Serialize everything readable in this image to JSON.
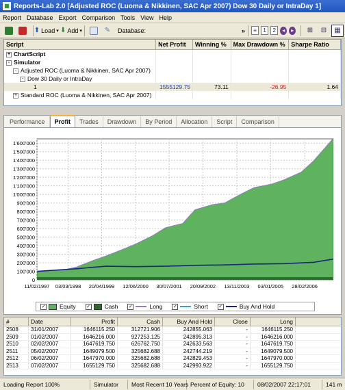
{
  "window": {
    "title": "Reports-Lab 2.0 [Adjusted ROC (Luoma & Nikkinen,  SAC Apr 2007)  Dow 30 Daily or IntraDay   1]"
  },
  "menu": [
    "Report",
    "Database",
    "Export",
    "Comparison",
    "Tools",
    "View",
    "Help"
  ],
  "toolbar": {
    "load_label": "Load",
    "add_label": "Add",
    "database_label": "Database:",
    "more_label": "»",
    "page1": "1",
    "page2": "2"
  },
  "grid": {
    "headers": [
      "Script",
      "Net Profit",
      "Winning %",
      "Max Drawdown %",
      "Sharpe Ratio"
    ],
    "rows": [
      {
        "indent": 0,
        "expander": "+",
        "label": "ChartScript",
        "bold": true
      },
      {
        "indent": 0,
        "expander": "-",
        "label": "Simulator",
        "bold": true
      },
      {
        "indent": 1,
        "expander": "-",
        "label": "Adjusted ROC (Luoma & Nikkinen,  SAC Apr 2007)"
      },
      {
        "indent": 2,
        "expander": "-",
        "label": "Dow 30 Daily or IntraDay"
      },
      {
        "indent": 4,
        "expander": "",
        "label": "1",
        "net_profit": "1555129.75",
        "winning": "73.11",
        "drawdown": "-26.95",
        "sharpe": "1.64",
        "selected": true
      },
      {
        "indent": 1,
        "expander": "+",
        "label": "Standard ROC (Luoma & Nikkinen,  SAC Apr 2007)"
      }
    ]
  },
  "tabs": [
    "Performance",
    "Profit",
    "Trades",
    "Drawdown",
    "By Period",
    "Allocation",
    "Script",
    "Comparison"
  ],
  "active_tab": "Profit",
  "legend": [
    {
      "label": "Equity",
      "color": "#5fb35f",
      "kind": "fill"
    },
    {
      "label": "Cash",
      "color": "#2e6b2e",
      "kind": "fill"
    },
    {
      "label": "Long",
      "color": "#9a7ac8",
      "kind": "line"
    },
    {
      "label": "Short",
      "color": "#3aa0c0",
      "kind": "line"
    },
    {
      "label": "Buy And Hold",
      "color": "#1a237e",
      "kind": "line"
    }
  ],
  "chart_data": {
    "type": "area",
    "x_tick_labels": [
      "11/02/1997",
      "03/03/1998",
      "20/04/1999",
      "12/06/2000",
      "30/07/2001",
      "20/09/2002",
      "13/11/2003",
      "03/01/2005",
      "28/02/2006"
    ],
    "y_tick_labels": [
      "1'600'000",
      "1'500'000",
      "1'400'000",
      "1'300'000",
      "1'200'000",
      "1'100'000",
      "1'000'000",
      "900'000",
      "800'000",
      "700'000",
      "600'000",
      "500'000",
      "400'000",
      "300'000",
      "200'000",
      "100'000",
      "0"
    ],
    "ylim": [
      0,
      1650000
    ],
    "series": [
      {
        "name": "Equity",
        "x": [
          "1997-02",
          "1997-12",
          "1998-06",
          "1999-01",
          "1999-06",
          "2000-01",
          "2000-06",
          "2001-01",
          "2001-06",
          "2002-01",
          "2002-06",
          "2003-01",
          "2003-06",
          "2004-01",
          "2004-06",
          "2005-01",
          "2005-06",
          "2006-01",
          "2006-06",
          "2007-02"
        ],
        "values": [
          100000,
          110000,
          150000,
          230000,
          280000,
          360000,
          420000,
          520000,
          610000,
          660000,
          820000,
          880000,
          900000,
          1010000,
          1080000,
          1120000,
          1170000,
          1260000,
          1390000,
          1655000
        ]
      },
      {
        "name": "Buy And Hold",
        "x": [
          "1997-02",
          "1998-06",
          "1999-06",
          "2000-06",
          "2001-06",
          "2002-06",
          "2003-06",
          "2004-06",
          "2005-06",
          "2006-06",
          "2007-02"
        ],
        "values": [
          100000,
          130000,
          160000,
          155000,
          160000,
          170000,
          175000,
          185000,
          190000,
          205000,
          243000
        ]
      }
    ],
    "xlabel": "",
    "ylabel": "",
    "grid": true
  },
  "table": {
    "headers": [
      "#",
      "Date",
      "Profit",
      "Cash",
      "Buy And Hold",
      "Close",
      "Long"
    ],
    "rows": [
      [
        "2508",
        "31/01/2007",
        "1646115.250",
        "312721.906",
        "242855.063",
        "-",
        "1646115.250"
      ],
      [
        "2509",
        "01/02/2007",
        "1646216.000",
        "927253.125",
        "242895.313",
        "-",
        "1646216.000"
      ],
      [
        "2510",
        "02/02/2007",
        "1647619.750",
        "626762.750",
        "242633.563",
        "-",
        "1647619.750"
      ],
      [
        "2511",
        "05/02/2007",
        "1649079.500",
        "325682.688",
        "242744.219",
        "-",
        "1649079.500"
      ],
      [
        "2512",
        "06/02/2007",
        "1647970.000",
        "325682.688",
        "242829.453",
        "-",
        "1647970.000"
      ],
      [
        "2513",
        "07/02/2007",
        "1655129.750",
        "325682.688",
        "242993.922",
        "-",
        "1655129.750"
      ]
    ]
  },
  "status": [
    "Loading Report 100%",
    "Simulator",
    "Most Recent 10 Years",
    "Percent of Equity: 10",
    "08/02/2007 22:17:01",
    "141 m"
  ]
}
